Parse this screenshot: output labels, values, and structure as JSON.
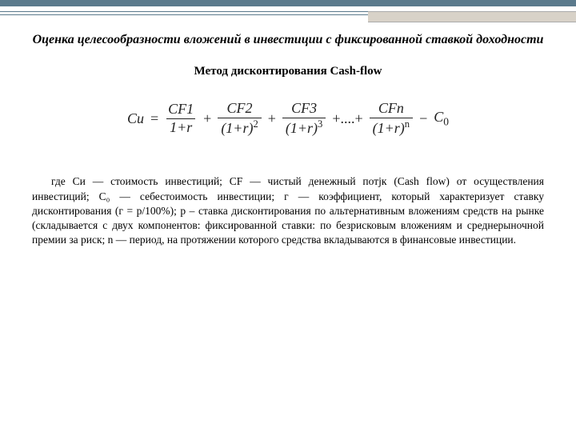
{
  "decor": {
    "top_bar_color": "#5b7a8c",
    "accent_color": "#d8d2c8"
  },
  "title": "Оценка целесообразности вложений в инвестиции с фиксированной ставкой доходности",
  "subtitle": "Метод дисконтирования Cash-flow",
  "formula": {
    "lhs": "Си",
    "eq": "=",
    "terms": [
      {
        "num": "CF1",
        "den_base": "1+r",
        "den_exp": ""
      },
      {
        "num": "CF2",
        "den_base": "(1+r)",
        "den_exp": "2"
      },
      {
        "num": "CF3",
        "den_base": "(1+r)",
        "den_exp": "3"
      }
    ],
    "ellipsis": "+....+",
    "last": {
      "num": "CFn",
      "den_base": "(1+r)",
      "den_exp": "n"
    },
    "minus": "−",
    "tail": "C",
    "tail_sub": "0"
  },
  "paragraph": "где Си — стоимость инвестиций; CF — чистый денежный потjк (Cash flow) от осуществления инвестиций; C₀ — себестоимость инвестиции; г — коэффициент, который характеризует ставку дисконтирования (г = р/100%); р – ставка дисконтирования по альтернативным вложениям средств на рынке (складывается с двух компонентов: фиксированной ставки: по безрисковым вложениям и среднерыночной премии за риск; n — период, на протяжении которого средства вкладываются в финансовые инвестиции.",
  "styles": {
    "title_fontsize": 16,
    "subtitle_fontsize": 15,
    "formula_fontsize": 18,
    "paragraph_fontsize": 13.5,
    "text_color": "#000000",
    "formula_color": "#222222",
    "background": "#ffffff",
    "font_family_serif": "Georgia, Times New Roman, serif"
  }
}
